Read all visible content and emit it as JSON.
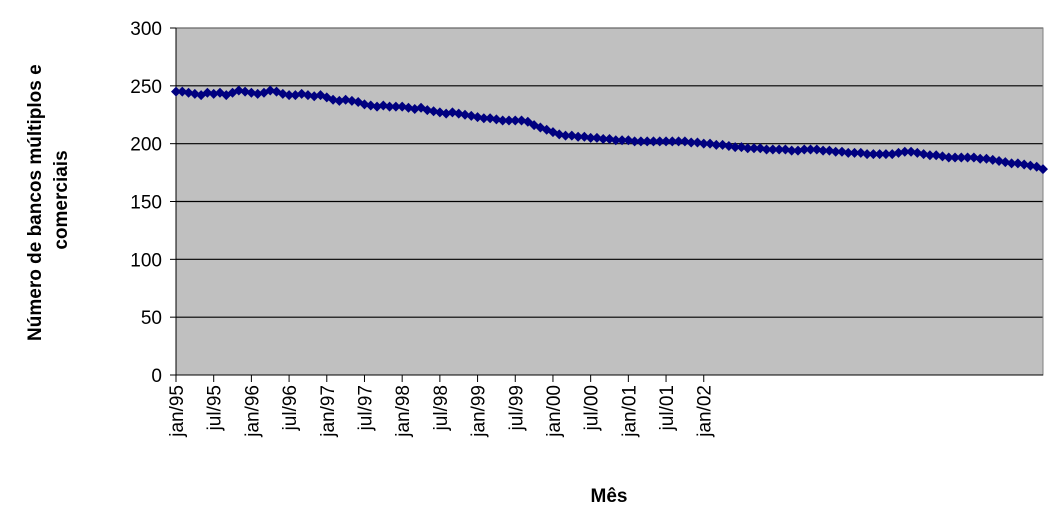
{
  "chart_data": {
    "type": "line",
    "xlabel": "Mês",
    "ylabel_lines": [
      "Número de bancos múltiplos e",
      "comerciais"
    ],
    "ylim": [
      0,
      300
    ],
    "yticks": [
      0,
      50,
      100,
      150,
      200,
      250,
      300
    ],
    "x_start": "jan/95",
    "x_end": "jan/02",
    "x_tick_labels": [
      "jan/95",
      "jul/95",
      "jan/96",
      "jul/96",
      "jan/97",
      "jul/97",
      "jan/98",
      "jul/98",
      "jan/99",
      "jul/99",
      "jan/00",
      "jul/00",
      "jan/01",
      "jul/01",
      "jan/02"
    ],
    "grid": "horizontal",
    "legend": "none",
    "colors": {
      "plot_background": "#c0c0c0",
      "series": "#000080",
      "gridline": "#000000"
    },
    "series": [
      {
        "values": [
          245,
          245,
          244,
          243,
          242,
          244,
          243,
          244,
          242,
          244,
          246,
          245,
          244,
          243,
          244,
          246,
          245,
          243,
          242,
          242,
          243,
          242,
          241,
          242,
          240,
          238,
          237,
          238,
          237,
          236,
          234,
          233,
          232,
          233,
          232,
          232,
          232,
          231,
          230,
          231,
          229,
          228,
          227,
          226,
          227,
          226,
          225,
          224,
          223,
          222,
          222,
          221,
          220,
          220,
          220,
          220,
          219,
          216,
          214,
          212,
          210,
          208,
          207,
          207,
          206,
          206,
          205,
          205,
          204,
          204,
          203,
          203,
          203,
          202,
          202,
          202,
          202,
          202,
          202,
          202,
          202,
          202,
          201,
          201,
          200,
          200,
          199,
          199,
          198,
          197,
          197,
          196,
          196,
          196,
          195,
          195,
          195,
          195,
          194,
          194,
          195,
          195,
          195,
          194,
          194,
          193,
          193,
          192,
          192,
          192,
          191,
          191,
          191,
          191,
          191,
          192,
          193,
          193,
          192,
          191,
          190,
          190,
          189,
          188,
          188,
          188,
          188,
          188,
          187,
          187,
          186,
          185,
          184,
          183,
          183,
          182,
          181,
          180,
          178
        ]
      }
    ]
  }
}
